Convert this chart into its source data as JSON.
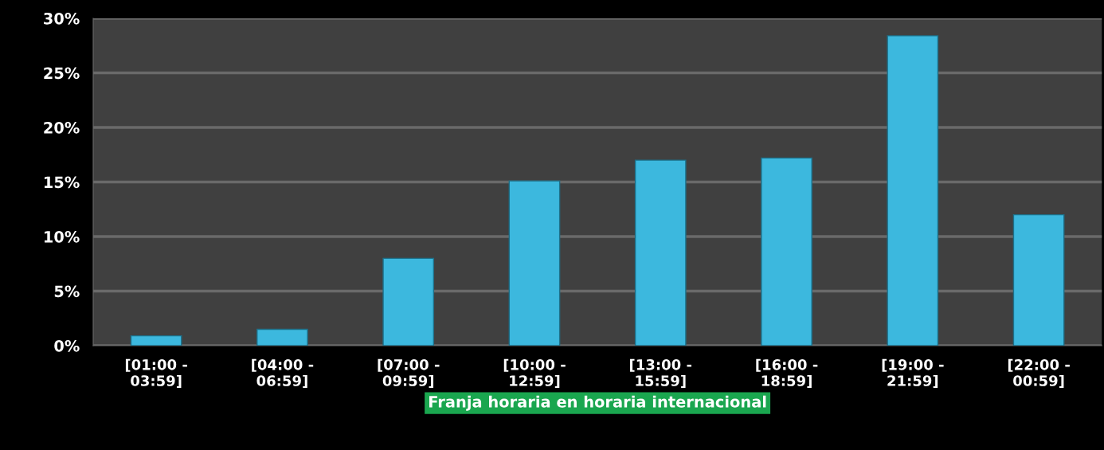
{
  "chart_data": {
    "type": "bar",
    "categories": [
      "[01:00 -\n03:59]",
      "[04:00 -\n06:59]",
      "[07:00 -\n09:59]",
      "[10:00 -\n12:59]",
      "[13:00 -\n15:59]",
      "[16:00 -\n18:59]",
      "[19:00 -\n21:59]",
      "[22:00 -\n00:59]"
    ],
    "values": [
      0.9,
      1.5,
      8.0,
      15.1,
      17.0,
      17.2,
      28.4,
      12.0
    ],
    "color": "#3cb8de",
    "xlabel": "Franja horaria en horaria internacional",
    "ylim": [
      0,
      30
    ],
    "yticks": [
      {
        "value": 0,
        "label": "0%"
      },
      {
        "value": 5,
        "label": "5%"
      },
      {
        "value": 10,
        "label": "10%"
      },
      {
        "value": 15,
        "label": "15%"
      },
      {
        "value": 20,
        "label": "20%"
      },
      {
        "value": 25,
        "label": "25%"
      },
      {
        "value": 30,
        "label": "30%"
      }
    ],
    "grid": "y"
  }
}
